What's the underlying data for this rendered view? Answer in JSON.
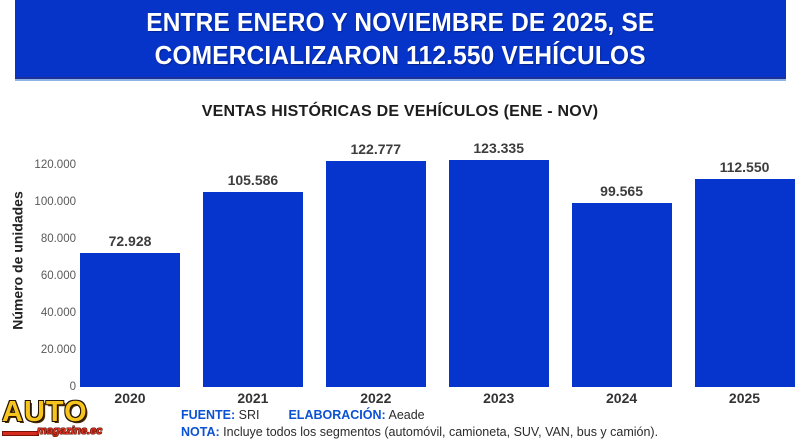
{
  "banner": {
    "line1": "ENTRE ENERO Y NOVIEMBRE DE 2025, SE",
    "line2": "COMERCIALIZARON 112.550 VEHÍCULOS",
    "bg_color": "#0634c9"
  },
  "chart_data": {
    "type": "bar",
    "title": "VENTAS HISTÓRICAS DE VEHÍCULOS (ENE - NOV)",
    "xlabel": "",
    "ylabel": "Número de unidades",
    "categories": [
      "2020",
      "2021",
      "2022",
      "2023",
      "2024",
      "2025"
    ],
    "values": [
      72928,
      105586,
      122777,
      123335,
      99565,
      112550
    ],
    "value_labels": [
      "72.928",
      "105.586",
      "122.777",
      "123.335",
      "99.565",
      "112.550"
    ],
    "yticks": [
      0,
      20000,
      40000,
      60000,
      80000,
      100000,
      120000
    ],
    "ytick_labels": [
      "0",
      "20.000",
      "40.000",
      "60.000",
      "80.000",
      "100.000",
      "120.000"
    ],
    "ylim": [
      0,
      130000
    ],
    "grid": false,
    "legend": false,
    "bar_color": "#0535cc"
  },
  "footer": {
    "fuente_label": "FUENTE:",
    "fuente_value": "SRI",
    "elaboracion_label": "ELABORACIÓN:",
    "elaboracion_value": "Aeade",
    "nota_label": "NOTA:",
    "nota_value": "Incluye todos los segmentos (automóvil, camioneta, SUV, VAN, bus y camión).",
    "label_color": "#0b51d3"
  },
  "logo": {
    "main": "AUTO",
    "sub": "magazine.ec"
  }
}
